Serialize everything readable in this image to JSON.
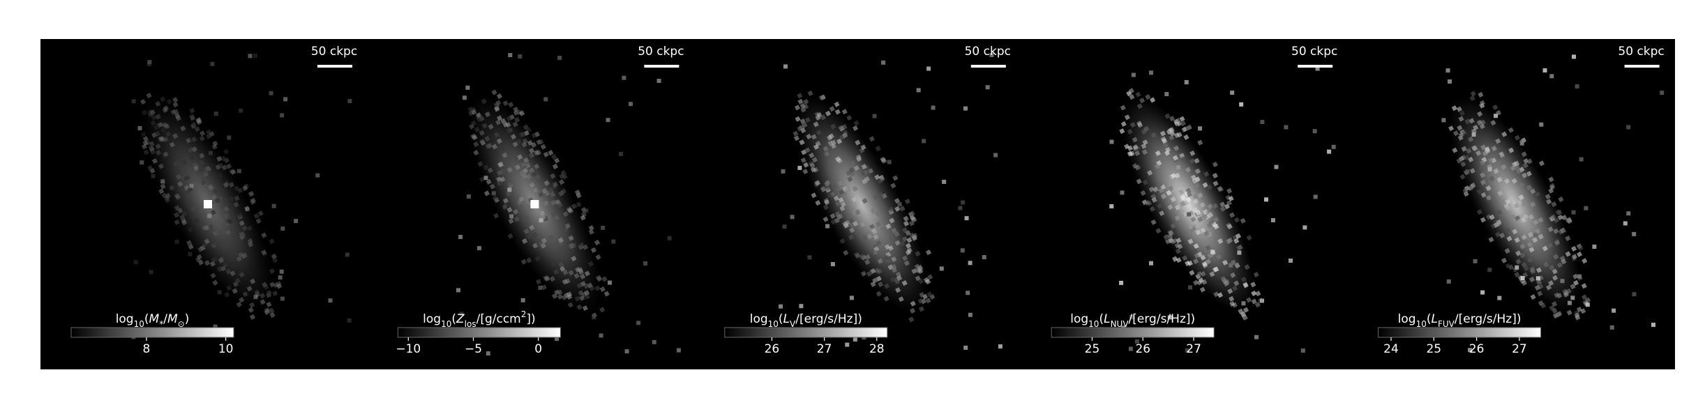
{
  "chart_data": [
    {
      "type": "image",
      "scale_bar": "50 ckpc",
      "colorbar_label": [
        {
          "text": "log",
          "style": "normal"
        },
        {
          "text": "10",
          "style": "sub"
        },
        {
          "text": "(",
          "style": "normal"
        },
        {
          "text": "M",
          "style": "italic"
        },
        {
          "text": "*",
          "style": "sub"
        },
        {
          "text": "/",
          "style": "normal"
        },
        {
          "text": "M",
          "style": "italic"
        },
        {
          "text": "⊙",
          "style": "sub"
        },
        {
          "text": ")",
          "style": "normal"
        }
      ],
      "clim": [
        6.1,
        10.2
      ],
      "cticks": [
        8,
        10
      ]
    },
    {
      "type": "image",
      "scale_bar": "50 ckpc",
      "colorbar_label": [
        {
          "text": "log",
          "style": "normal"
        },
        {
          "text": "10",
          "style": "sub"
        },
        {
          "text": "(",
          "style": "normal"
        },
        {
          "text": "Z",
          "style": "italic"
        },
        {
          "text": "los",
          "style": "sub"
        },
        {
          "text": "/[g/ccm",
          "style": "normal"
        },
        {
          "text": "2",
          "style": "sup"
        },
        {
          "text": "])",
          "style": "normal"
        }
      ],
      "clim": [
        -10.8,
        1.7
      ],
      "cticks": [
        {
          "value": -10,
          "label": "−10"
        },
        {
          "value": -5,
          "label": "−5"
        },
        0
      ]
    },
    {
      "type": "image",
      "scale_bar": "50 ckpc",
      "colorbar_label": [
        {
          "text": "log",
          "style": "normal"
        },
        {
          "text": "10",
          "style": "sub"
        },
        {
          "text": "(",
          "style": "normal"
        },
        {
          "text": "L",
          "style": "italic"
        },
        {
          "text": "V",
          "style": "sub"
        },
        {
          "text": "/[erg/s/Hz])",
          "style": "normal"
        }
      ],
      "clim": [
        25.1,
        28.2
      ],
      "cticks": [
        26,
        27,
        28
      ]
    },
    {
      "type": "image",
      "scale_bar": "50 ckpc",
      "colorbar_label": [
        {
          "text": "log",
          "style": "normal"
        },
        {
          "text": "10",
          "style": "sub"
        },
        {
          "text": "(",
          "style": "normal"
        },
        {
          "text": "L",
          "style": "italic"
        },
        {
          "text": "NUV",
          "style": "sub"
        },
        {
          "text": "/[erg/s/Hz])",
          "style": "normal"
        }
      ],
      "clim": [
        24.2,
        27.4
      ],
      "cticks": [
        25,
        26,
        27
      ]
    },
    {
      "type": "image",
      "scale_bar": "50 ckpc",
      "colorbar_label": [
        {
          "text": "log",
          "style": "normal"
        },
        {
          "text": "10",
          "style": "sub"
        },
        {
          "text": "(",
          "style": "normal"
        },
        {
          "text": "L",
          "style": "italic"
        },
        {
          "text": "FUV",
          "style": "sub"
        },
        {
          "text": "/[erg/s/Hz])",
          "style": "normal"
        }
      ],
      "clim": [
        23.7,
        27.5
      ],
      "cticks": [
        24,
        25,
        26,
        27
      ]
    }
  ]
}
